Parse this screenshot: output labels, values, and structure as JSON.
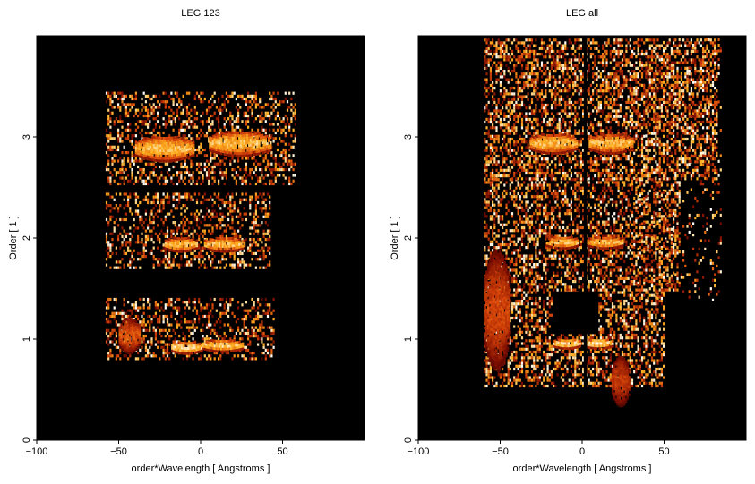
{
  "chart_data": [
    {
      "type": "heatmap",
      "title": "LEG 123",
      "xlabel": "order*Wavelength [ Angstroms ]",
      "ylabel": "Order [ 1 ]",
      "xlim": [
        -100,
        100
      ],
      "ylim": [
        0,
        4
      ],
      "xticks": [
        -100,
        -50,
        0,
        50
      ],
      "yticks": [
        0,
        1,
        2,
        3
      ],
      "colormap": [
        "#000000",
        "#7a0c00",
        "#d8460a",
        "#ffb020",
        "#ffffff"
      ],
      "bright_regions": [
        {
          "x_from": -18,
          "x_to": 0,
          "y": 0.93,
          "height": 0.12,
          "intensity": 1.0
        },
        {
          "x_from": 1,
          "x_to": 25,
          "y": 0.95,
          "height": 0.12,
          "intensity": 0.95
        },
        {
          "x_from": -50,
          "x_to": -38,
          "y": 1.05,
          "height": 0.35,
          "intensity": 0.6
        },
        {
          "x_from": -22,
          "x_to": -3,
          "y": 1.95,
          "height": 0.14,
          "intensity": 0.9
        },
        {
          "x_from": 2,
          "x_to": 26,
          "y": 1.95,
          "height": 0.14,
          "intensity": 0.9
        },
        {
          "x_from": -40,
          "x_to": -5,
          "y": 2.9,
          "height": 0.25,
          "intensity": 0.9
        },
        {
          "x_from": 5,
          "x_to": 42,
          "y": 2.95,
          "height": 0.25,
          "intensity": 0.9
        }
      ],
      "noise_bands": [
        {
          "x_from": -58,
          "x_to": 45,
          "y_from": 0.82,
          "y_to": 1.42,
          "density": 0.35
        },
        {
          "x_from": -58,
          "x_to": 42,
          "y_from": 1.72,
          "y_to": 2.45,
          "density": 0.35
        },
        {
          "x_from": -58,
          "x_to": 58,
          "y_from": 2.55,
          "y_to": 3.45,
          "density": 0.35
        }
      ]
    },
    {
      "type": "heatmap",
      "title": "LEG all",
      "xlabel": "order*Wavelength [ Angstroms ]",
      "ylabel": "Order [ 1 ]",
      "xlim": [
        -100,
        100
      ],
      "ylim": [
        0,
        4
      ],
      "xticks": [
        -100,
        -50,
        0,
        50
      ],
      "yticks": [
        0,
        1,
        2,
        3
      ],
      "colormap": [
        "#000000",
        "#7a0c00",
        "#d8460a",
        "#ffb020",
        "#ffffff"
      ],
      "bright_regions": [
        {
          "x_from": -18,
          "x_to": -2,
          "y": 0.97,
          "height": 0.1,
          "intensity": 1.0
        },
        {
          "x_from": 1,
          "x_to": 18,
          "y": 0.97,
          "height": 0.1,
          "intensity": 1.0
        },
        {
          "x_from": -22,
          "x_to": -3,
          "y": 1.97,
          "height": 0.12,
          "intensity": 0.9
        },
        {
          "x_from": 3,
          "x_to": 24,
          "y": 1.97,
          "height": 0.12,
          "intensity": 0.9
        },
        {
          "x_from": -32,
          "x_to": -4,
          "y": 2.95,
          "height": 0.2,
          "intensity": 0.9
        },
        {
          "x_from": 4,
          "x_to": 30,
          "y": 2.95,
          "height": 0.2,
          "intensity": 0.9
        },
        {
          "x_from": -60,
          "x_to": -45,
          "y": 1.3,
          "height": 1.2,
          "intensity": 0.55
        },
        {
          "x_from": 18,
          "x_to": 28,
          "y": 0.6,
          "height": 0.5,
          "intensity": 0.5
        }
      ],
      "noise_bands": [
        {
          "x_from": -60,
          "x_to": 50,
          "y_from": 0.55,
          "y_to": 1.5,
          "density": 0.45
        },
        {
          "x_from": -60,
          "x_to": 60,
          "y_from": 1.5,
          "y_to": 2.6,
          "density": 0.45
        },
        {
          "x_from": -60,
          "x_to": 82,
          "y_from": 2.6,
          "y_to": 4.0,
          "density": 0.5
        },
        {
          "x_from": 30,
          "x_to": 85,
          "y_from": 1.4,
          "y_to": 4.0,
          "density": 0.12
        }
      ],
      "dark_column": {
        "x_from": 1,
        "x_to": 3,
        "y_from": 0.3,
        "y_to": 4.0
      },
      "dark_box": {
        "x_from": -18,
        "x_to": 10,
        "y_from": 1.05,
        "y_to": 1.47
      }
    }
  ]
}
